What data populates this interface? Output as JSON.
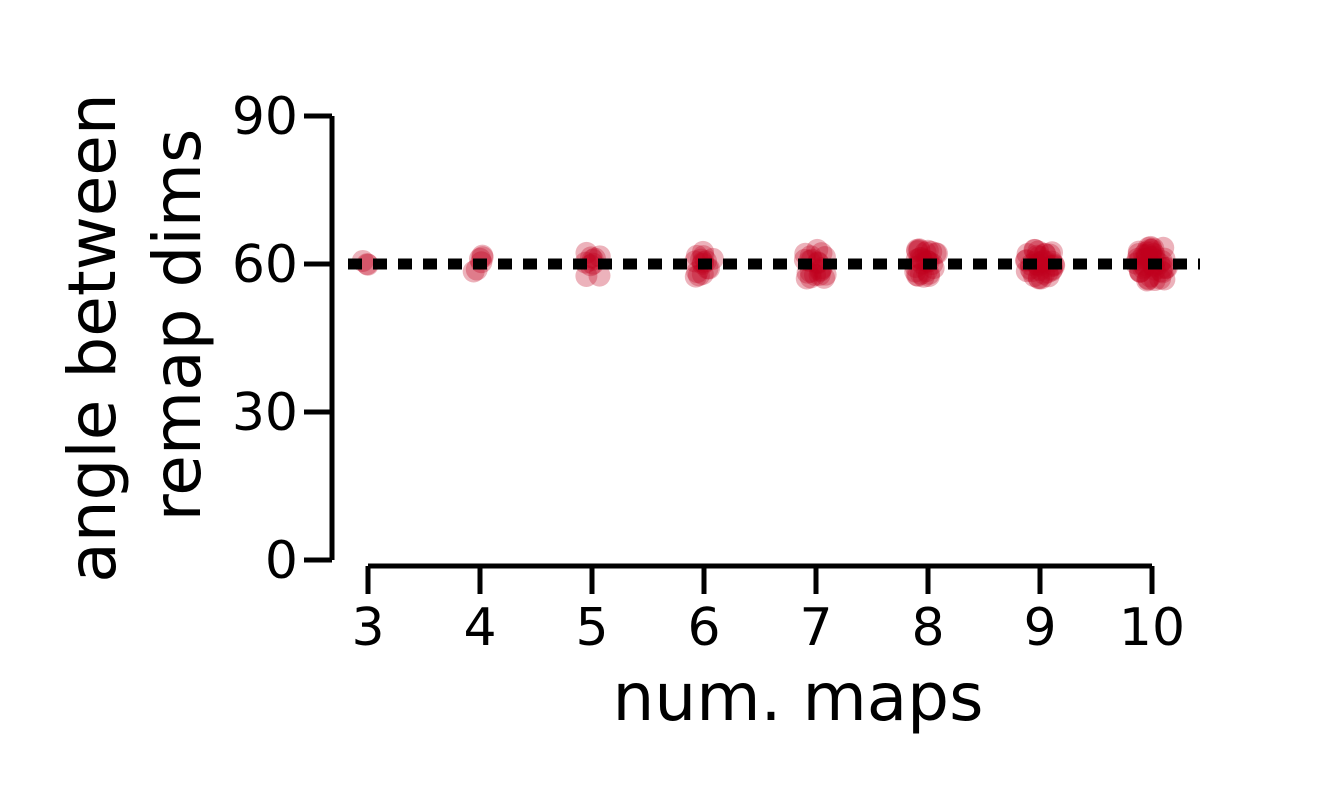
{
  "chart_data": {
    "type": "scatter",
    "title": "",
    "xlabel": "num. maps",
    "ylabel_lines": [
      "angle between",
      "remap dims"
    ],
    "xlim": [
      3,
      10
    ],
    "ylim": [
      0,
      90
    ],
    "x_ticks": [
      3,
      4,
      5,
      6,
      7,
      8,
      9,
      10
    ],
    "y_ticks": [
      0,
      30,
      60,
      90
    ],
    "grid": false,
    "legend": "none",
    "reference_line": {
      "y": 60,
      "style": "dotted",
      "color": "#000000"
    },
    "point_color": "#c0001e",
    "series": [
      {
        "x": 3,
        "values": [
          60
        ],
        "spread": 1.2,
        "count": 3
      },
      {
        "x": 4,
        "values": [
          60
        ],
        "spread": 2.0,
        "count": 6
      },
      {
        "x": 5,
        "values": [
          60
        ],
        "spread": 2.5,
        "count": 10
      },
      {
        "x": 6,
        "values": [
          60
        ],
        "spread": 3.0,
        "count": 15
      },
      {
        "x": 7,
        "values": [
          60
        ],
        "spread": 3.0,
        "count": 21
      },
      {
        "x": 8,
        "values": [
          60
        ],
        "spread": 3.0,
        "count": 28
      },
      {
        "x": 9,
        "values": [
          60
        ],
        "spread": 3.0,
        "count": 36
      },
      {
        "x": 10,
        "values": [
          60
        ],
        "spread": 3.5,
        "count": 45
      }
    ]
  }
}
